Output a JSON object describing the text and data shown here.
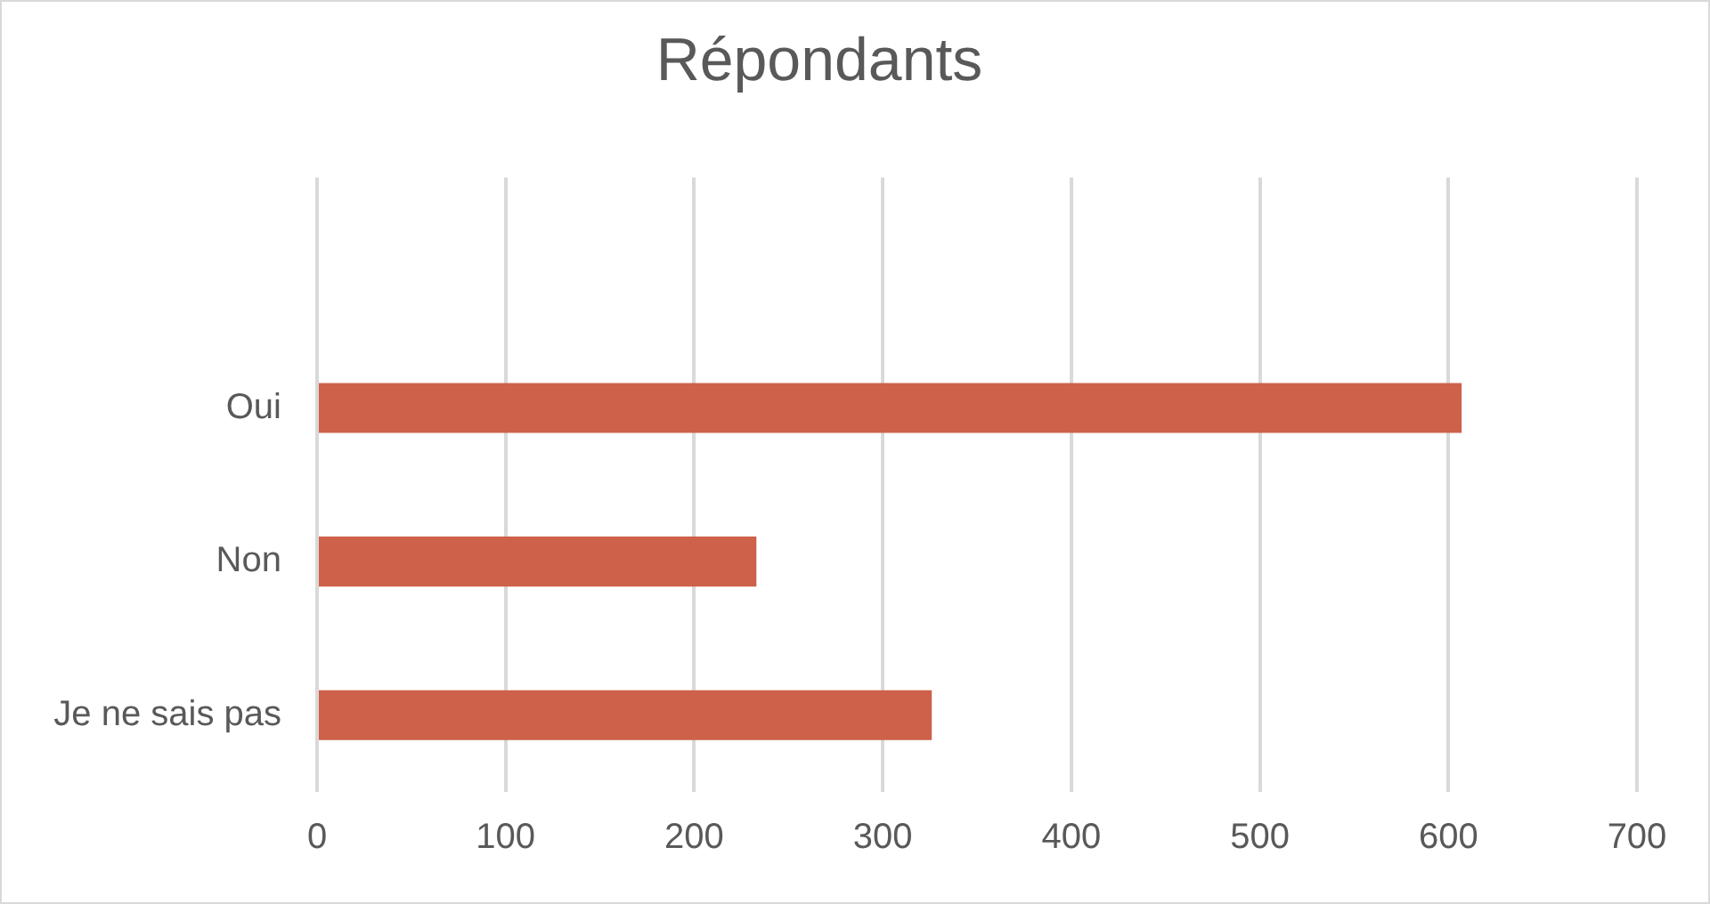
{
  "chart_data": {
    "type": "bar",
    "orientation": "horizontal",
    "title": "Répondants",
    "categories": [
      null,
      "Oui",
      "Non",
      "Je ne sais pas"
    ],
    "values": [
      null,
      607,
      233,
      326
    ],
    "color": "#cd6149",
    "xlim": [
      0,
      700
    ],
    "xticks": [
      0,
      100,
      200,
      300,
      400,
      500,
      600,
      700
    ],
    "grid": "x",
    "legend": false
  }
}
